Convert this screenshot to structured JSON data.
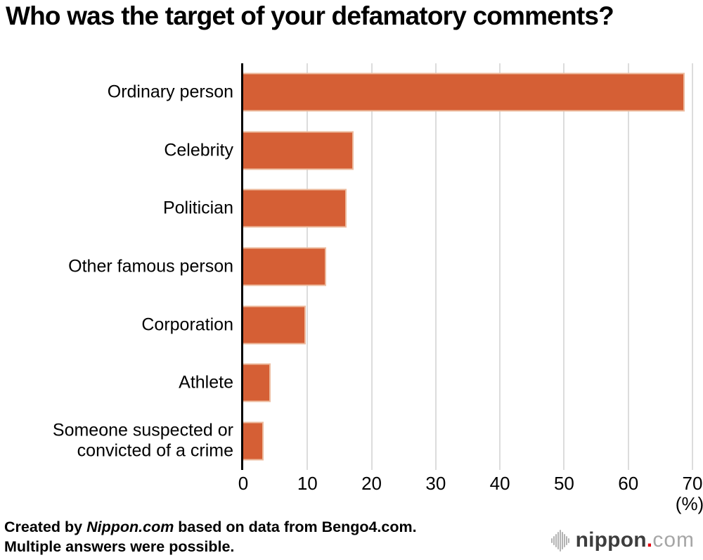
{
  "title": "Who was the target of your defamatory comments?",
  "chart_data": {
    "type": "bar",
    "orientation": "horizontal",
    "title": "Who was the target of your defamatory comments?",
    "categories": [
      "Ordinary person",
      "Celebrity",
      "Politician",
      "Other famous person",
      "Corporation",
      "Athlete",
      "Someone suspected or convicted of a crime"
    ],
    "values": [
      68.8,
      17.2,
      16.1,
      12.9,
      9.7,
      4.3,
      3.2
    ],
    "xlabel": "",
    "ylabel": "",
    "unit_label": "(%)",
    "xlim": [
      0,
      70
    ],
    "x_ticks": [
      0,
      10,
      20,
      30,
      40,
      50,
      60,
      70
    ],
    "grid": true,
    "legend": false,
    "bar_color": "#d55f35",
    "bar_border_color": "#edbb9e",
    "gridline_color": "#dcdcdc",
    "axis_color": "#000000"
  },
  "footer": {
    "line1_pre": "Created by ",
    "line1_italic": "Nippon.com",
    "line1_post": " based on data from Bengo4.com.",
    "line2": "Multiple answers were possible."
  },
  "logo": {
    "name": "nippon",
    "dot": ".",
    "tld": "com",
    "name_color": "#3d3d3d",
    "dot_color": "#e60012",
    "tld_color": "#a6a6a6",
    "icon_color": "#b3b3b3"
  }
}
